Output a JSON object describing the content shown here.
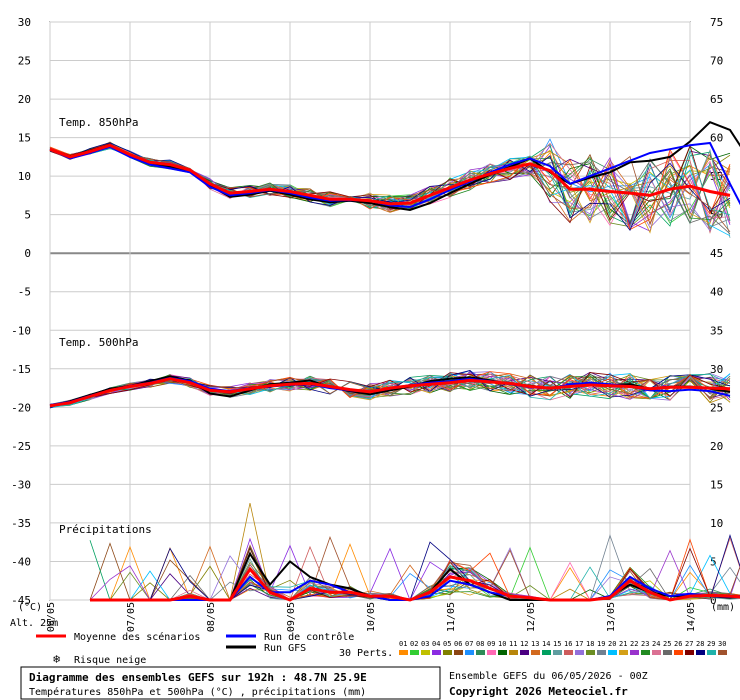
{
  "chart_data": {
    "type": "line",
    "title": "Diagramme des ensembles GEFS sur 192h : 48.7N 25.9E",
    "subtitle": "Températures 850hPa et 500hPa (°C) , précipitations (mm)",
    "run_info": "Ensemble GEFS du 06/05/2026 - 00Z",
    "copyright": "Copyright 2026 Meteociel.fr",
    "left_axis": {
      "unit_label": "(°C)",
      "ticks": [
        30,
        25,
        20,
        15,
        10,
        5,
        0,
        -5,
        -10,
        -15,
        -20,
        -25,
        -30,
        -35,
        -40,
        -45
      ],
      "range": [
        -45,
        30
      ]
    },
    "right_axis": {
      "unit_label": "(mm)",
      "ticks": [
        75,
        70,
        65,
        60,
        55,
        50,
        45,
        40,
        35,
        30,
        25,
        20,
        15,
        10,
        5,
        0
      ],
      "range": [
        0,
        75
      ]
    },
    "altitude_label": "Alt. 25",
    "altitude_unit": "m",
    "x_labels": [
      "06/05",
      "07/05",
      "08/05",
      "09/05",
      "10/05",
      "11/05",
      "12/05",
      "13/05",
      "14/05"
    ],
    "x_step_hours": 6,
    "group_labels": {
      "t850": "Temp. 850hPa",
      "t500": "Temp. 500hPa",
      "precip": "Précipitations"
    },
    "legend": {
      "mean": "Moyenne des scénarios",
      "control": "Run de contrôle",
      "gfs": "Run GFS",
      "snow": "Risque neige",
      "perts": "30 Perts."
    },
    "colors": {
      "mean": "#ff0000",
      "control": "#0000ff",
      "gfs": "#000000",
      "snow": "#3399ff",
      "zero_line": "#888888"
    },
    "pert_ids": [
      "01",
      "02",
      "03",
      "04",
      "05",
      "06",
      "07",
      "08",
      "09",
      "10",
      "11",
      "12",
      "13",
      "14",
      "15",
      "16",
      "17",
      "18",
      "19",
      "20",
      "21",
      "22",
      "23",
      "24",
      "25",
      "26",
      "27",
      "28",
      "29",
      "30"
    ],
    "pert_colors": [
      "#ff8c00",
      "#32cd32",
      "#c0c000",
      "#8a2be2",
      "#808000",
      "#8b4513",
      "#1e90ff",
      "#2e8b57",
      "#ff69b4",
      "#006400",
      "#b8860b",
      "#4b0082",
      "#d2691e",
      "#00a060",
      "#5f9ea0",
      "#cd5c5c",
      "#9370db",
      "#6b8e23",
      "#708090",
      "#00bfff",
      "#d4a017",
      "#9932cc",
      "#228b22",
      "#db7093",
      "#696969",
      "#ff4500",
      "#800000",
      "#000080",
      "#20b2aa",
      "#a0522d"
    ],
    "series": [
      {
        "name": "Moyenne des scénarios",
        "t850": [
          13.5,
          12.5,
          13.2,
          14.0,
          12.8,
          11.8,
          11.5,
          10.8,
          9.0,
          7.8,
          8.0,
          8.3,
          8.0,
          7.5,
          7.0,
          7.0,
          6.8,
          6.4,
          6.5,
          7.5,
          8.5,
          9.5,
          10.3,
          11.0,
          11.6,
          10.7,
          8.3,
          8.3,
          8.0,
          7.8,
          7.5,
          8.3,
          8.7,
          8.0,
          7.5
        ],
        "t500": [
          -19.8,
          -19.4,
          -18.6,
          -17.8,
          -17.3,
          -16.9,
          -16.3,
          -16.8,
          -17.8,
          -18.0,
          -17.6,
          -17.2,
          -17.0,
          -16.9,
          -17.3,
          -17.7,
          -18.0,
          -17.5,
          -17.2,
          -17.0,
          -16.8,
          -16.5,
          -16.7,
          -16.9,
          -17.3,
          -17.5,
          -17.3,
          -17.1,
          -17.2,
          -17.3,
          -17.6,
          -17.4,
          -17.4,
          -17.5,
          -17.6
        ],
        "precip": [
          0,
          0,
          0,
          0,
          0,
          0.5,
          0,
          0,
          4,
          1,
          0,
          1.5,
          1,
          1,
          0.5,
          0.5,
          0,
          1,
          3,
          2.5,
          1.5,
          0.5,
          0.3,
          0,
          0,
          0,
          0.3,
          2.5,
          1,
          0,
          0.5,
          0.6,
          0.5,
          0.3,
          0.4,
          0.5,
          1.6,
          0.5
        ]
      },
      {
        "name": "Run de contrôle",
        "t850": [
          13.5,
          12.3,
          13.0,
          13.8,
          12.5,
          11.5,
          11.0,
          10.5,
          8.6,
          7.5,
          7.8,
          8.2,
          7.8,
          7.2,
          6.8,
          6.9,
          6.8,
          6.2,
          6.0,
          7.0,
          8.2,
          9.3,
          10.5,
          11.5,
          12.3,
          11.3,
          9.0,
          10.0,
          11.0,
          12.0,
          13.0,
          13.5,
          14.0,
          14.3,
          9.0,
          4.0
        ],
        "t500": [
          -19.7,
          -19.3,
          -18.5,
          -17.8,
          -17.2,
          -16.8,
          -16.2,
          -16.6,
          -17.6,
          -17.9,
          -17.5,
          -17.3,
          -17.1,
          -17.0,
          -17.5,
          -17.8,
          -18.0,
          -17.6,
          -17.1,
          -16.8,
          -16.6,
          -16.3,
          -16.6,
          -17.0,
          -17.4,
          -17.6,
          -17.0,
          -16.8,
          -17.0,
          -17.3,
          -17.8,
          -17.9,
          -17.7,
          -17.9,
          -18.5
        ],
        "precip": [
          0,
          0,
          0,
          0,
          0,
          0,
          0,
          0,
          3,
          1,
          1,
          2.5,
          2,
          1,
          0.5,
          0,
          0,
          0.5,
          2.5,
          2,
          1,
          0.5,
          0.3,
          0,
          0,
          0,
          0.5,
          3,
          1.5,
          0.5,
          0.8,
          0.5,
          0.4,
          0.6,
          0.5,
          0.6,
          1.2,
          0
        ]
      },
      {
        "name": "Run GFS",
        "t850": [
          13.5,
          12.6,
          13.3,
          13.9,
          12.6,
          11.6,
          11.2,
          10.6,
          8.8,
          7.3,
          7.6,
          8.1,
          7.6,
          7.0,
          6.6,
          6.8,
          6.5,
          6.0,
          5.6,
          6.5,
          7.8,
          9.0,
          10.2,
          11.2,
          12.3,
          10.5,
          9.0,
          9.8,
          10.5,
          11.8,
          12.0,
          12.5,
          14.5,
          17.0,
          16.0,
          12.0
        ],
        "t500": [
          -19.8,
          -19.2,
          -18.4,
          -17.6,
          -17.2,
          -16.6,
          -16.0,
          -16.5,
          -18.2,
          -18.6,
          -17.8,
          -17.0,
          -16.8,
          -16.5,
          -17.4,
          -17.9,
          -18.3,
          -17.8,
          -17.3,
          -16.6,
          -16.3,
          -16.1,
          -16.5,
          -17.0,
          -17.2,
          -17.5,
          -17.1,
          -16.9,
          -17.1,
          -17.0,
          -17.6,
          -17.3,
          -17.3,
          -17.6,
          -18.0
        ],
        "precip": [
          0,
          0,
          0,
          0,
          0,
          0,
          0,
          0,
          6,
          2,
          5,
          3,
          2,
          1.5,
          0.5,
          0,
          0,
          1,
          4,
          2,
          1,
          0,
          0,
          0,
          0,
          0,
          0.5,
          2,
          1,
          0.5,
          0.5,
          0.5,
          0.3,
          0.5,
          0.4,
          1,
          2,
          1
        ]
      }
    ]
  }
}
